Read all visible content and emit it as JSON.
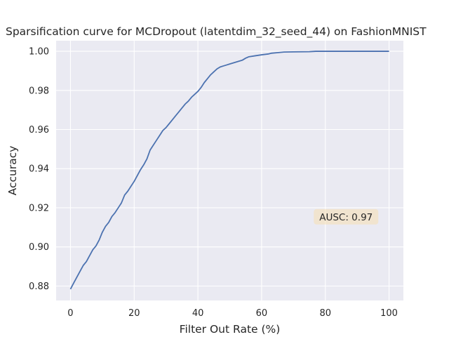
{
  "chart_data": {
    "type": "line",
    "title": "Sparsification curve for MCDropout (latentdim_32_seed_44) on FashionMNIST",
    "xlabel": "Filter Out Rate (%)",
    "ylabel": "Accuracy",
    "xlim": [
      -4.5,
      104.5
    ],
    "ylim": [
      0.8726,
      1.0054
    ],
    "xticks": [
      0,
      20,
      40,
      60,
      80,
      100
    ],
    "xtick_labels": [
      "0",
      "20",
      "40",
      "60",
      "80",
      "100"
    ],
    "yticks": [
      0.88,
      0.9,
      0.92,
      0.94,
      0.96,
      0.98,
      1.0
    ],
    "ytick_labels": [
      "0.88",
      "0.90",
      "0.92",
      "0.94",
      "0.96",
      "0.98",
      "1.00"
    ],
    "grid": true,
    "background": "#eaeaf2",
    "series": [
      {
        "color": "#4c72b0",
        "x": [
          0,
          1,
          2,
          3,
          4,
          5,
          6,
          7,
          8,
          9,
          10,
          11,
          12,
          13,
          14,
          15,
          16,
          17,
          18,
          19,
          20,
          21,
          22,
          23,
          24,
          25,
          26,
          27,
          28,
          29,
          30,
          31,
          32,
          33,
          34,
          35,
          36,
          37,
          38,
          39,
          40,
          41,
          42,
          43,
          44,
          45,
          46,
          47,
          48,
          49,
          50,
          52,
          54,
          55,
          56,
          58,
          60,
          62,
          63,
          65,
          67,
          70,
          75,
          77,
          80,
          85,
          90,
          95,
          100
        ],
        "y": [
          0.8784,
          0.8815,
          0.8845,
          0.8875,
          0.8905,
          0.8925,
          0.8955,
          0.8985,
          0.9005,
          0.9035,
          0.9075,
          0.9105,
          0.9125,
          0.9155,
          0.9175,
          0.92,
          0.9225,
          0.9265,
          0.9285,
          0.931,
          0.9335,
          0.9365,
          0.9395,
          0.942,
          0.945,
          0.9495,
          0.952,
          0.9545,
          0.957,
          0.9595,
          0.961,
          0.963,
          0.965,
          0.967,
          0.969,
          0.971,
          0.973,
          0.9745,
          0.9765,
          0.978,
          0.9795,
          0.9815,
          0.984,
          0.986,
          0.988,
          0.9895,
          0.991,
          0.992,
          0.9925,
          0.993,
          0.9935,
          0.9945,
          0.9955,
          0.9965,
          0.9972,
          0.9977,
          0.9982,
          0.9986,
          0.999,
          0.9993,
          0.9996,
          0.9997,
          0.9998,
          1.0,
          1.0,
          1.0,
          1.0,
          1.0,
          1.0
        ]
      }
    ],
    "annotation": {
      "text": "AUSC: 0.97",
      "x": 86.5,
      "y": 0.9154,
      "box_color": "#f5deb3"
    }
  }
}
